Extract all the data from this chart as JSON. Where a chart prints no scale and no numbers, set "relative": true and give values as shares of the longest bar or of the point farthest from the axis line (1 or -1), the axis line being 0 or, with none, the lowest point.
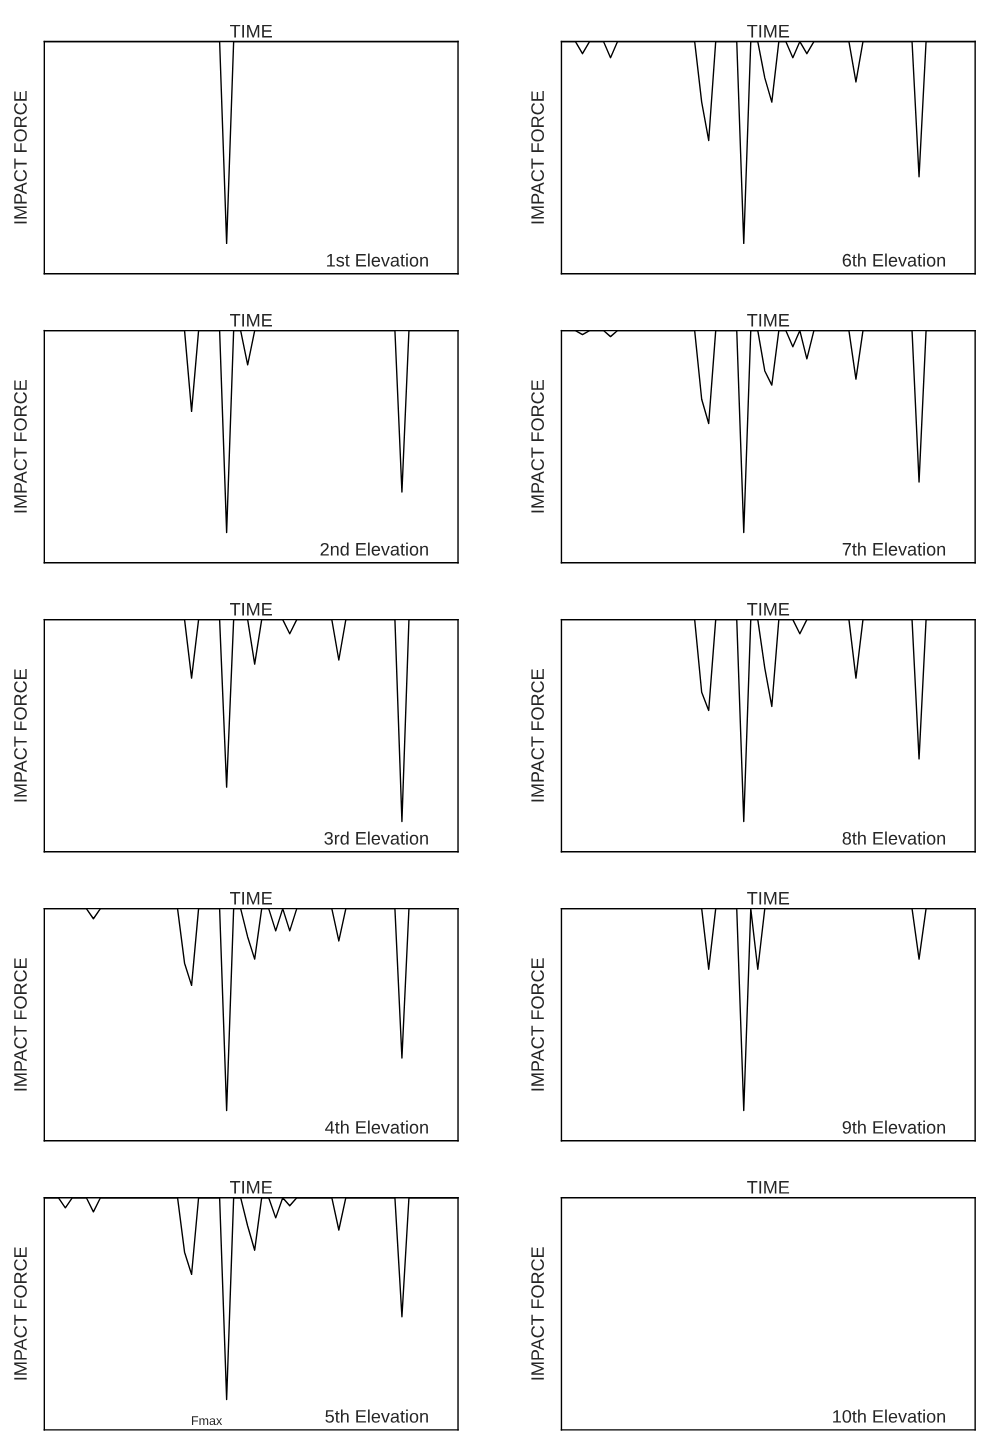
{
  "chart_data": [
    {
      "type": "line",
      "relative": true,
      "xlabel": "TIME",
      "ylabel": "IMPACT FORCE",
      "annotations": [
        "1st Elevation"
      ],
      "tick_labels": false,
      "categories": [
        null,
        null,
        null,
        null,
        null,
        null,
        null,
        null,
        null,
        null,
        null,
        null,
        null,
        null,
        null,
        null,
        null,
        null,
        null,
        null,
        null,
        null,
        null,
        null,
        null,
        null,
        null,
        null,
        null,
        null,
        null,
        null,
        null,
        null,
        null,
        null,
        null,
        null,
        null,
        null,
        null,
        null,
        null,
        null,
        null,
        null,
        null,
        null,
        null,
        null,
        null,
        null,
        null,
        null,
        null,
        null,
        null,
        null,
        null,
        null
      ],
      "series": [
        {
          "color": "#000000",
          "values": [
            0,
            0,
            0,
            0,
            0,
            0,
            0,
            0,
            0,
            0,
            0,
            0,
            0,
            0,
            0,
            0,
            0,
            0,
            0,
            0,
            0,
            0,
            0,
            0,
            0,
            0,
            -1,
            0,
            0,
            0,
            0,
            0,
            0,
            0,
            0,
            0,
            0,
            0,
            0,
            0,
            0,
            0,
            0,
            0,
            0,
            0,
            0,
            0,
            0,
            0,
            0,
            0,
            0,
            0,
            0,
            0,
            0,
            0,
            0,
            0
          ]
        }
      ]
    },
    {
      "type": "line",
      "relative": true,
      "xlabel": "TIME",
      "ylabel": "IMPACT FORCE",
      "annotations": [
        "2nd Elevation"
      ],
      "tick_labels": false,
      "categories": [
        null,
        null,
        null,
        null,
        null,
        null,
        null,
        null,
        null,
        null,
        null,
        null,
        null,
        null,
        null,
        null,
        null,
        null,
        null,
        null,
        null,
        null,
        null,
        null,
        null,
        null,
        null,
        null,
        null,
        null,
        null,
        null,
        null,
        null,
        null,
        null,
        null,
        null,
        null,
        null,
        null,
        null,
        null,
        null,
        null,
        null,
        null,
        null,
        null,
        null,
        null,
        null,
        null,
        null,
        null,
        null,
        null,
        null,
        null,
        null
      ],
      "series": [
        {
          "color": "#000000",
          "values": [
            0,
            0,
            0,
            0,
            0,
            0,
            0,
            0,
            0,
            0,
            0,
            0,
            0,
            0,
            0,
            0,
            0,
            0,
            0,
            0,
            0,
            -0.4,
            0,
            0,
            0,
            0,
            -1,
            0,
            0,
            -0.17,
            0,
            0,
            0,
            0,
            0,
            0,
            0,
            0,
            0,
            0,
            0,
            0,
            0,
            0,
            0,
            0,
            0,
            0,
            0,
            0,
            0,
            -0.8,
            0,
            0,
            0,
            0,
            0,
            0,
            0,
            0
          ]
        }
      ]
    },
    {
      "type": "line",
      "relative": true,
      "xlabel": "TIME",
      "ylabel": "IMPACT FORCE",
      "annotations": [
        "3rd Elevation"
      ],
      "tick_labels": false,
      "categories": [
        null,
        null,
        null,
        null,
        null,
        null,
        null,
        null,
        null,
        null,
        null,
        null,
        null,
        null,
        null,
        null,
        null,
        null,
        null,
        null,
        null,
        null,
        null,
        null,
        null,
        null,
        null,
        null,
        null,
        null,
        null,
        null,
        null,
        null,
        null,
        null,
        null,
        null,
        null,
        null,
        null,
        null,
        null,
        null,
        null,
        null,
        null,
        null,
        null,
        null,
        null,
        null,
        null,
        null,
        null,
        null,
        null,
        null,
        null,
        null
      ],
      "series": [
        {
          "color": "#000000",
          "values": [
            0,
            0,
            0,
            0,
            0,
            0,
            0,
            0,
            0,
            0,
            0,
            0,
            0,
            0,
            0,
            0,
            0,
            0,
            0,
            0,
            0,
            -0.29,
            0,
            0,
            0,
            0,
            -0.83,
            0,
            0,
            0,
            -0.22,
            0,
            0,
            0,
            0,
            -0.07,
            0,
            0,
            0,
            0,
            0,
            0,
            -0.2,
            0,
            0,
            0,
            0,
            0,
            0,
            0,
            0,
            -1,
            0,
            0,
            0,
            0,
            0,
            0,
            0,
            0
          ]
        }
      ]
    },
    {
      "type": "line",
      "relative": true,
      "xlabel": "TIME",
      "ylabel": "IMPACT FORCE",
      "annotations": [
        "4th Elevation"
      ],
      "tick_labels": false,
      "categories": [
        null,
        null,
        null,
        null,
        null,
        null,
        null,
        null,
        null,
        null,
        null,
        null,
        null,
        null,
        null,
        null,
        null,
        null,
        null,
        null,
        null,
        null,
        null,
        null,
        null,
        null,
        null,
        null,
        null,
        null,
        null,
        null,
        null,
        null,
        null,
        null,
        null,
        null,
        null,
        null,
        null,
        null,
        null,
        null,
        null,
        null,
        null,
        null,
        null,
        null,
        null,
        null,
        null,
        null,
        null,
        null,
        null,
        null,
        null,
        null
      ],
      "series": [
        {
          "color": "#000000",
          "values": [
            0,
            0,
            0,
            0,
            0,
            0,
            0,
            -0.05,
            0,
            0,
            0,
            0,
            0,
            0,
            0,
            0,
            0,
            0,
            0,
            0,
            -0.27,
            -0.38,
            0,
            0,
            0,
            0,
            -1,
            0,
            0,
            -0.14,
            -0.25,
            0,
            0,
            -0.11,
            0,
            -0.11,
            0,
            0,
            0,
            0,
            0,
            0,
            -0.16,
            0,
            0,
            0,
            0,
            0,
            0,
            0,
            0,
            -0.74,
            0,
            0,
            0,
            0,
            0,
            0,
            0,
            0
          ]
        }
      ]
    },
    {
      "type": "line",
      "relative": true,
      "xlabel": "TIME",
      "ylabel": "IMPACT FORCE",
      "annotations": [
        "5th Elevation",
        "Fmax"
      ],
      "tick_labels": false,
      "categories": [
        null,
        null,
        null,
        null,
        null,
        null,
        null,
        null,
        null,
        null,
        null,
        null,
        null,
        null,
        null,
        null,
        null,
        null,
        null,
        null,
        null,
        null,
        null,
        null,
        null,
        null,
        null,
        null,
        null,
        null,
        null,
        null,
        null,
        null,
        null,
        null,
        null,
        null,
        null,
        null,
        null,
        null,
        null,
        null,
        null,
        null,
        null,
        null,
        null,
        null,
        null,
        null,
        null,
        null,
        null,
        null,
        null,
        null,
        null,
        null
      ],
      "series": [
        {
          "color": "#000000",
          "values": [
            0,
            0,
            0,
            -0.05,
            0,
            0,
            0,
            -0.07,
            0,
            0,
            0,
            0,
            0,
            0,
            0,
            0,
            0,
            0,
            0,
            0,
            -0.27,
            -0.38,
            0,
            0,
            0,
            0,
            -1,
            0,
            0,
            -0.14,
            -0.26,
            0,
            0,
            -0.1,
            0,
            -0.04,
            0,
            0,
            0,
            0,
            0,
            0,
            -0.16,
            0,
            0,
            0,
            0,
            0,
            0,
            0,
            0,
            -0.59,
            0,
            0,
            0,
            0,
            0,
            0,
            0,
            0
          ]
        }
      ]
    },
    {
      "type": "line",
      "relative": true,
      "xlabel": "TIME",
      "ylabel": "IMPACT FORCE",
      "annotations": [
        "6th Elevation"
      ],
      "tick_labels": false,
      "categories": [
        null,
        null,
        null,
        null,
        null,
        null,
        null,
        null,
        null,
        null,
        null,
        null,
        null,
        null,
        null,
        null,
        null,
        null,
        null,
        null,
        null,
        null,
        null,
        null,
        null,
        null,
        null,
        null,
        null,
        null,
        null,
        null,
        null,
        null,
        null,
        null,
        null,
        null,
        null,
        null,
        null,
        null,
        null,
        null,
        null,
        null,
        null,
        null,
        null,
        null,
        null,
        null,
        null,
        null,
        null,
        null,
        null,
        null,
        null,
        null
      ],
      "series": [
        {
          "color": "#000000",
          "values": [
            0,
            0,
            0,
            -0.06,
            0,
            0,
            0,
            -0.08,
            0,
            0,
            0,
            0,
            0,
            0,
            0,
            0,
            0,
            0,
            0,
            0,
            -0.3,
            -0.49,
            0,
            0,
            0,
            0,
            -1,
            0,
            0,
            -0.18,
            -0.3,
            0,
            0,
            -0.08,
            0,
            -0.06,
            0,
            0,
            0,
            0,
            0,
            0,
            -0.2,
            0,
            0,
            0,
            0,
            0,
            0,
            0,
            0,
            -0.67,
            0,
            0,
            0,
            0,
            0,
            0,
            0,
            0
          ]
        }
      ]
    },
    {
      "type": "line",
      "relative": true,
      "xlabel": "TIME",
      "ylabel": "IMPACT FORCE",
      "annotations": [
        "7th Elevation"
      ],
      "tick_labels": false,
      "categories": [
        null,
        null,
        null,
        null,
        null,
        null,
        null,
        null,
        null,
        null,
        null,
        null,
        null,
        null,
        null,
        null,
        null,
        null,
        null,
        null,
        null,
        null,
        null,
        null,
        null,
        null,
        null,
        null,
        null,
        null,
        null,
        null,
        null,
        null,
        null,
        null,
        null,
        null,
        null,
        null,
        null,
        null,
        null,
        null,
        null,
        null,
        null,
        null,
        null,
        null,
        null,
        null,
        null,
        null,
        null,
        null,
        null,
        null,
        null,
        null
      ],
      "series": [
        {
          "color": "#000000",
          "values": [
            0,
            0,
            0,
            -0.02,
            0,
            0,
            0,
            -0.03,
            0,
            0,
            0,
            0,
            0,
            0,
            0,
            0,
            0,
            0,
            0,
            0,
            -0.34,
            -0.46,
            0,
            0,
            0,
            0,
            -1,
            0,
            0,
            -0.2,
            -0.27,
            0,
            0,
            -0.08,
            0,
            -0.14,
            0,
            0,
            0,
            0,
            0,
            0,
            -0.24,
            0,
            0,
            0,
            0,
            0,
            0,
            0,
            0,
            -0.75,
            0,
            0,
            0,
            0,
            0,
            0,
            0,
            0
          ]
        }
      ]
    },
    {
      "type": "line",
      "relative": true,
      "xlabel": "TIME",
      "ylabel": "IMPACT FORCE",
      "annotations": [
        "8th Elevation"
      ],
      "tick_labels": false,
      "categories": [
        null,
        null,
        null,
        null,
        null,
        null,
        null,
        null,
        null,
        null,
        null,
        null,
        null,
        null,
        null,
        null,
        null,
        null,
        null,
        null,
        null,
        null,
        null,
        null,
        null,
        null,
        null,
        null,
        null,
        null,
        null,
        null,
        null,
        null,
        null,
        null,
        null,
        null,
        null,
        null,
        null,
        null,
        null,
        null,
        null,
        null,
        null,
        null,
        null,
        null,
        null,
        null,
        null,
        null,
        null,
        null,
        null,
        null,
        null,
        null
      ],
      "series": [
        {
          "color": "#000000",
          "values": [
            0,
            0,
            0,
            0,
            0,
            0,
            0,
            0,
            0,
            0,
            0,
            0,
            0,
            0,
            0,
            0,
            0,
            0,
            0,
            0,
            -0.36,
            -0.45,
            0,
            0,
            0,
            0,
            -1,
            0,
            0,
            -0.24,
            -0.43,
            0,
            0,
            0,
            -0.07,
            0,
            0,
            0,
            0,
            0,
            0,
            0,
            -0.29,
            0,
            0,
            0,
            0,
            0,
            0,
            0,
            0,
            -0.69,
            0,
            0,
            0,
            0,
            0,
            0,
            0,
            0
          ]
        }
      ]
    },
    {
      "type": "line",
      "relative": true,
      "xlabel": "TIME",
      "ylabel": "IMPACT FORCE",
      "annotations": [
        "9th Elevation"
      ],
      "tick_labels": false,
      "categories": [
        null,
        null,
        null,
        null,
        null,
        null,
        null,
        null,
        null,
        null,
        null,
        null,
        null,
        null,
        null,
        null,
        null,
        null,
        null,
        null,
        null,
        null,
        null,
        null,
        null,
        null,
        null,
        null,
        null,
        null,
        null,
        null,
        null,
        null,
        null,
        null,
        null,
        null,
        null,
        null,
        null,
        null,
        null,
        null,
        null,
        null,
        null,
        null,
        null,
        null,
        null,
        null,
        null,
        null,
        null,
        null,
        null,
        null,
        null,
        null
      ],
      "series": [
        {
          "color": "#000000",
          "values": [
            0,
            0,
            0,
            0,
            0,
            0,
            0,
            0,
            0,
            0,
            0,
            0,
            0,
            0,
            0,
            0,
            0,
            0,
            0,
            0,
            0,
            -0.3,
            0,
            0,
            0,
            0,
            -1,
            0,
            -0.3,
            0,
            0,
            0,
            0,
            0,
            0,
            0,
            0,
            0,
            0,
            0,
            0,
            0,
            0,
            0,
            0,
            0,
            0,
            0,
            0,
            0,
            0,
            -0.25,
            0,
            0,
            0,
            0,
            0,
            0,
            0,
            0
          ]
        }
      ]
    },
    {
      "type": "other",
      "xlabel": "TIME",
      "ylabel": "IMPACT FORCE",
      "annotations": [
        "10th Elevation"
      ]
    }
  ]
}
